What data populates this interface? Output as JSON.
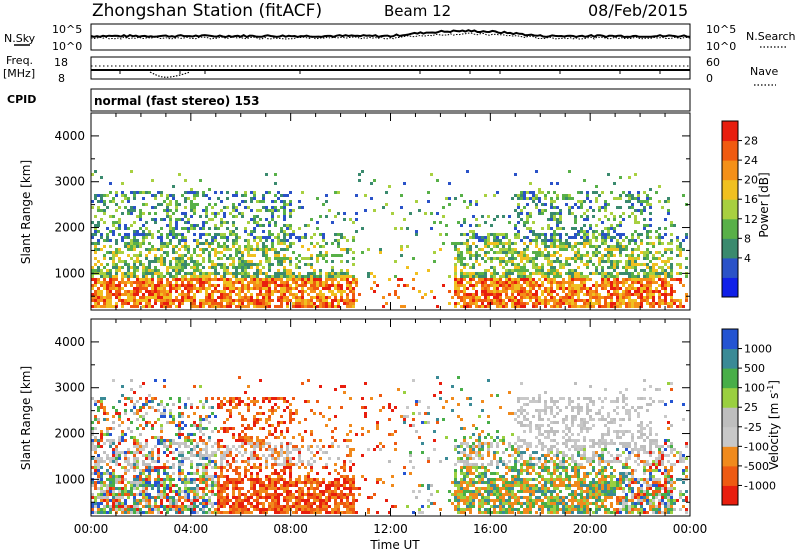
{
  "header": {
    "station": "Zhongshan Station (fitACF)",
    "beam": "Beam 12",
    "date": "08/Feb/2015"
  },
  "top_panel": {
    "left_label": "N.Sky",
    "right_label": "N.Search",
    "tick_top": "10^5",
    "tick_bottom": "10^0"
  },
  "freq_panel": {
    "left_label_1": "Freq.",
    "left_label_2": "[MHz]",
    "left_ticks": [
      "18",
      "8"
    ],
    "right_ticks": [
      "60",
      "0"
    ],
    "right_label": "Nave",
    "cpid_label": "CPID",
    "cpid_text": "normal (fast stereo) 153"
  },
  "colors": {
    "power": [
      "#1020e8",
      "#2a52c8",
      "#3a8a6e",
      "#58b048",
      "#a8d040",
      "#f0c020",
      "#f49018",
      "#f05a10",
      "#e81e0e"
    ],
    "velocity": [
      "#e81e0e",
      "#ee5a12",
      "#f08a1c",
      "#c8c8c8",
      "#bebebe",
      "#9ad040",
      "#48ae48",
      "#3a8a96",
      "#2454d2"
    ]
  },
  "chart_data": [
    {
      "type": "heatmap",
      "ylabel": "Slant Range [km]",
      "yticks": [
        "4000",
        "3000",
        "2000",
        "1000"
      ],
      "ylim": [
        200,
        4500
      ],
      "xlim": [
        0,
        24
      ],
      "colorbar": {
        "label": "Power [dB]",
        "ticks": [
          "28",
          "24",
          "20",
          "16",
          "12",
          "8",
          "4"
        ],
        "range": [
          0,
          32
        ]
      }
    },
    {
      "type": "heatmap",
      "ylabel": "Slant Range [km]",
      "yticks": [
        "4000",
        "3000",
        "2000",
        "1000"
      ],
      "ylim": [
        200,
        4500
      ],
      "xlim": [
        0,
        24
      ],
      "xlabel": "Time UT",
      "xticks": [
        "00:00",
        "04:00",
        "08:00",
        "12:00",
        "16:00",
        "20:00",
        "00:00"
      ],
      "colorbar": {
        "label": "Velocity [m s",
        "label_sup": "-1",
        "label_end": "]",
        "ticks": [
          "1000",
          "500",
          "100",
          "25",
          "-25",
          "-100",
          "-500",
          "-1000"
        ]
      }
    }
  ]
}
